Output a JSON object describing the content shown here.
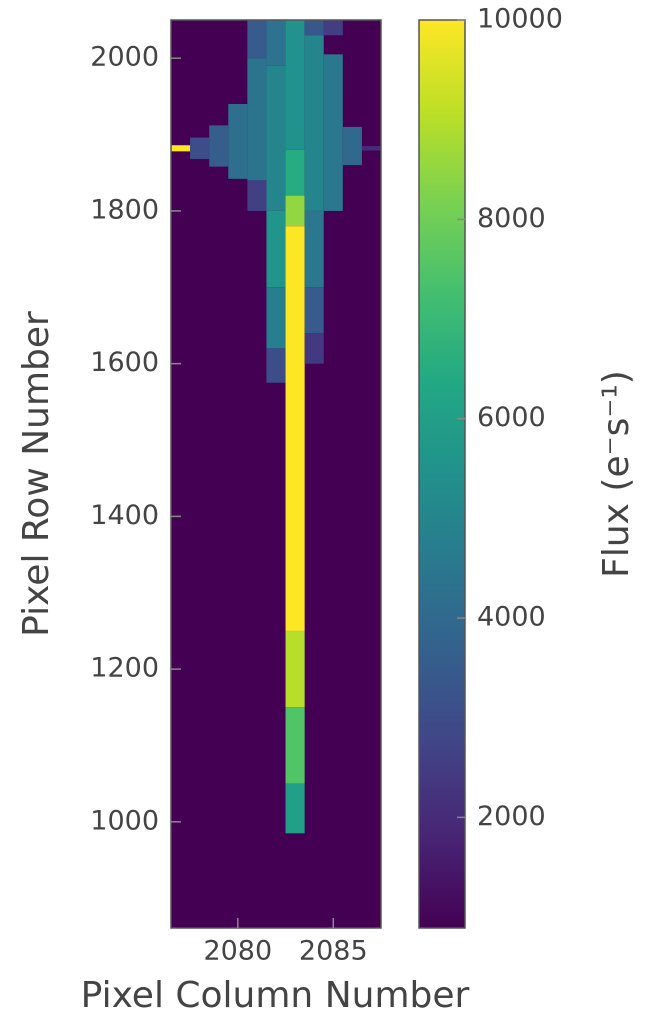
{
  "chart_data": {
    "type": "heatmap",
    "xlabel": "Pixel Column Number",
    "ylabel": "Pixel Row Number",
    "colorbar_label": "Flux (e⁻s⁻¹)",
    "colormap": "viridis",
    "xlim": [
      2076.5,
      2087.5
    ],
    "xticks": [
      2080,
      2085
    ],
    "ylim": [
      861,
      2050
    ],
    "yticks": [
      1000,
      1200,
      1400,
      1600,
      1800,
      2000
    ],
    "clim": [
      890,
      10000
    ],
    "cticks": [
      2000,
      4000,
      6000,
      8000,
      10000
    ],
    "columns": [
      {
        "x": 2077,
        "segments": [
          {
            "y": [
              1878,
              1886
            ],
            "value": 10000
          }
        ]
      },
      {
        "x": 2078,
        "segments": [
          {
            "y": [
              1868,
              1896
            ],
            "value": 3000
          }
        ]
      },
      {
        "x": 2079,
        "segments": [
          {
            "y": [
              1858,
              1912
            ],
            "value": 3600
          }
        ]
      },
      {
        "x": 2080,
        "segments": [
          {
            "y": [
              1842,
              1940
            ],
            "value": 4200
          }
        ]
      },
      {
        "x": 2081,
        "segments": [
          {
            "y": [
              2000,
              2050
            ],
            "value": 3500
          },
          {
            "y": [
              1840,
              2000
            ],
            "value": 4400
          },
          {
            "y": [
              1800,
              1840
            ],
            "value": 2600
          }
        ]
      },
      {
        "x": 2082,
        "segments": [
          {
            "y": [
              1990,
              2050
            ],
            "value": 4300
          },
          {
            "y": [
              1800,
              1990
            ],
            "value": 5000
          },
          {
            "y": [
              1700,
              1800
            ],
            "value": 5600
          },
          {
            "y": [
              1620,
              1700
            ],
            "value": 4800
          },
          {
            "y": [
              1575,
              1620
            ],
            "value": 3000
          }
        ]
      },
      {
        "x": 2083,
        "segments": [
          {
            "y": [
              1880,
              2050
            ],
            "value": 5500
          },
          {
            "y": [
              1820,
              1880
            ],
            "value": 6500
          },
          {
            "y": [
              1780,
              1820
            ],
            "value": 8500
          },
          {
            "y": [
              1250,
              1780
            ],
            "value": 10000
          },
          {
            "y": [
              1150,
              1250
            ],
            "value": 9000
          },
          {
            "y": [
              1050,
              1150
            ],
            "value": 7500
          },
          {
            "y": [
              985,
              1050
            ],
            "value": 6000
          }
        ]
      },
      {
        "x": 2084,
        "segments": [
          {
            "y": [
              2030,
              2050
            ],
            "value": 3400
          },
          {
            "y": [
              1800,
              2030
            ],
            "value": 5000
          },
          {
            "y": [
              1700,
              1800
            ],
            "value": 4500
          },
          {
            "y": [
              1640,
              1700
            ],
            "value": 3500
          },
          {
            "y": [
              1600,
              1640
            ],
            "value": 2400
          }
        ]
      },
      {
        "x": 2085,
        "segments": [
          {
            "y": [
              2030,
              2050
            ],
            "value": 2500
          },
          {
            "y": [
              1800,
              2005
            ],
            "value": 4500
          }
        ]
      },
      {
        "x": 2086,
        "segments": [
          {
            "y": [
              1860,
              1910
            ],
            "value": 4000
          }
        ]
      },
      {
        "x": 2087,
        "segments": [
          {
            "y": [
              1879,
              1885
            ],
            "value": 2000
          }
        ]
      }
    ]
  }
}
